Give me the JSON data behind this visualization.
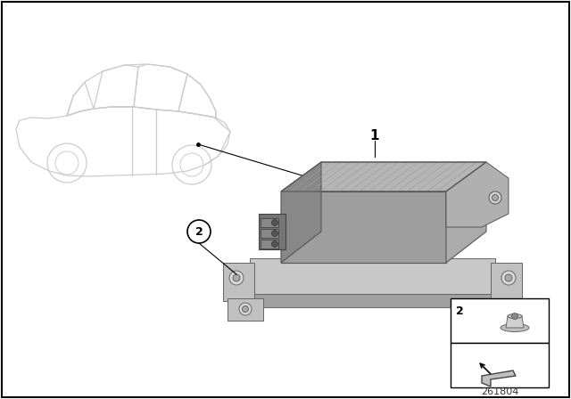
{
  "diagram_number": "261804",
  "background_color": "#ffffff",
  "border_color": "#000000",
  "lc": "#000000",
  "car_color": "#cccccc",
  "unit_top": "#b8b8b8",
  "unit_front_left": "#909090",
  "unit_right": "#a8a8a8",
  "unit_tray": "#c0c0c0",
  "unit_shadow": "#808080",
  "rib_color": "#9a9a9a",
  "connector_color": "#888888",
  "tab_color": "#b5b5b5",
  "inset_box_color": "#000000"
}
